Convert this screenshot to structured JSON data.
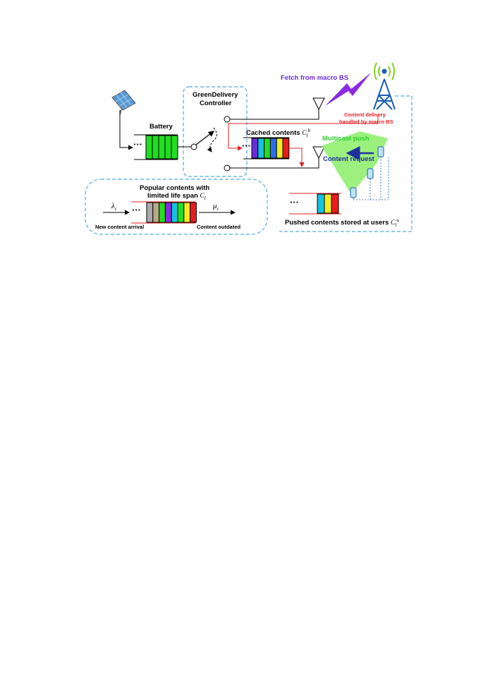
{
  "labels": {
    "battery": "Battery",
    "controller_line1": "GreenDelivery",
    "controller_line2": "Controller",
    "fetch": "Fetch from macro BS",
    "delivery_line1": "Content delivery",
    "delivery_line2": "handled by macro BS",
    "cached": "Cached contents",
    "multicast": "Multicast push",
    "request": "Content request",
    "popular_line1": "Popular contents with",
    "popular_line2": "limited life span",
    "new_arrival": "New content arrival",
    "outdated": "Content outdated",
    "pushed": "Pushed contents stored at users",
    "dots": "···"
  },
  "math": {
    "lambda": "λ",
    "lambda_sub": "c",
    "mu": "μ",
    "mu_sub": "c",
    "c_main": "C",
    "c_sub": "l",
    "cached_sup": "b",
    "pushed_sup": "u"
  },
  "colors": {
    "battery_cell": "#22dd22",
    "dashed_border": "#55aadd",
    "fetch_text": "#6a2ed8",
    "lightning": "#8a2be2",
    "tower": "#1a5fb4",
    "delivery_text": "#e02020",
    "multicast_text": "#33cc33",
    "request_text": "#1f2f9e",
    "beam": "#90ee70",
    "red_line": "#e02020",
    "cached_cells": [
      "#6a2ed8",
      "#16c2e0",
      "#22dd22",
      "#2a6ef0",
      "#f2ee22",
      "#e81c1c"
    ],
    "popular_cells": [
      "#aaaaaa",
      "#b8a98a",
      "#22dd22",
      "#8a2be2",
      "#16c2e0",
      "#22dd22",
      "#f2ee22",
      "#e81c1c"
    ],
    "pushed_cells": [
      "#16c2e0",
      "#f2ee22",
      "#e81c1c"
    ]
  },
  "icons": [
    "solar-panel-icon",
    "switch-icon",
    "antenna-icon",
    "tower-icon",
    "signal-wave-icon",
    "lightning-icon",
    "phone-icon"
  ]
}
